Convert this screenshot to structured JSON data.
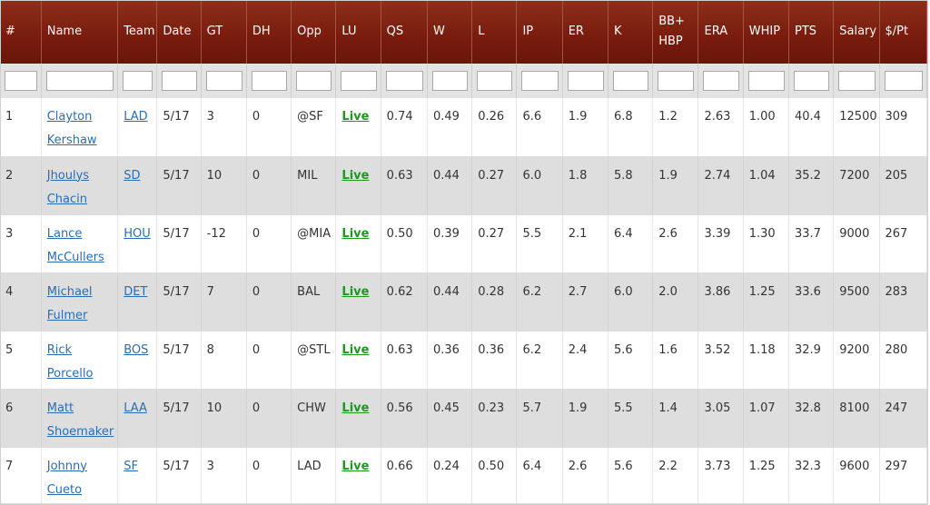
{
  "columns": [
    "#",
    "Name",
    "Team",
    "Date",
    "GT",
    "DH",
    "Opp",
    "LU",
    "QS",
    "W",
    "L",
    "IP",
    "ER",
    "K",
    "BB+\nHBP",
    "ERA",
    "WHIP",
    "PTS",
    "Salary",
    "$/Pt"
  ],
  "rows": [
    {
      "rank": "1",
      "first": "Clayton",
      "last": "Kershaw",
      "team": "LAD",
      "date": "5/17",
      "gt": "3",
      "dh": "0",
      "opp": "@SF",
      "lu": "Live",
      "qs": "0.74",
      "w": "0.49",
      "l": "0.26",
      "ip": "6.6",
      "er": "1.9",
      "k": "6.8",
      "bb": "1.2",
      "era": "2.63",
      "whip": "1.00",
      "pts": "40.4",
      "salary": "12500",
      "ppt": "309"
    },
    {
      "rank": "2",
      "first": "Jhoulys",
      "last": "Chacin",
      "team": "SD",
      "date": "5/17",
      "gt": "10",
      "dh": "0",
      "opp": "MIL",
      "lu": "Live",
      "qs": "0.63",
      "w": "0.44",
      "l": "0.27",
      "ip": "6.0",
      "er": "1.8",
      "k": "5.8",
      "bb": "1.9",
      "era": "2.74",
      "whip": "1.04",
      "pts": "35.2",
      "salary": "7200",
      "ppt": "205"
    },
    {
      "rank": "3",
      "first": "Lance",
      "last": "McCullers",
      "team": "HOU",
      "date": "5/17",
      "gt": "-12",
      "dh": "0",
      "opp": "@MIA",
      "lu": "Live",
      "qs": "0.50",
      "w": "0.39",
      "l": "0.27",
      "ip": "5.5",
      "er": "2.1",
      "k": "6.4",
      "bb": "2.6",
      "era": "3.39",
      "whip": "1.30",
      "pts": "33.7",
      "salary": "9000",
      "ppt": "267"
    },
    {
      "rank": "4",
      "first": "Michael",
      "last": "Fulmer",
      "team": "DET",
      "date": "5/17",
      "gt": "7",
      "dh": "0",
      "opp": "BAL",
      "lu": "Live",
      "qs": "0.62",
      "w": "0.44",
      "l": "0.28",
      "ip": "6.2",
      "er": "2.7",
      "k": "6.0",
      "bb": "2.0",
      "era": "3.86",
      "whip": "1.25",
      "pts": "33.6",
      "salary": "9500",
      "ppt": "283"
    },
    {
      "rank": "5",
      "first": "Rick",
      "last": "Porcello",
      "team": "BOS",
      "date": "5/17",
      "gt": "8",
      "dh": "0",
      "opp": "@STL",
      "lu": "Live",
      "qs": "0.63",
      "w": "0.36",
      "l": "0.36",
      "ip": "6.2",
      "er": "2.4",
      "k": "5.6",
      "bb": "1.6",
      "era": "3.52",
      "whip": "1.18",
      "pts": "32.9",
      "salary": "9200",
      "ppt": "280"
    },
    {
      "rank": "6",
      "first": "Matt",
      "last": "Shoemaker",
      "team": "LAA",
      "date": "5/17",
      "gt": "10",
      "dh": "0",
      "opp": "CHW",
      "lu": "Live",
      "qs": "0.56",
      "w": "0.45",
      "l": "0.23",
      "ip": "5.7",
      "er": "1.9",
      "k": "5.5",
      "bb": "1.4",
      "era": "3.05",
      "whip": "1.07",
      "pts": "32.8",
      "salary": "8100",
      "ppt": "247"
    },
    {
      "rank": "7",
      "first": "Johnny",
      "last": "Cueto",
      "team": "SF",
      "date": "5/17",
      "gt": "3",
      "dh": "0",
      "opp": "LAD",
      "lu": "Live",
      "qs": "0.66",
      "w": "0.24",
      "l": "0.50",
      "ip": "6.4",
      "er": "2.6",
      "k": "5.6",
      "bb": "2.2",
      "era": "3.73",
      "whip": "1.25",
      "pts": "32.3",
      "salary": "9600",
      "ppt": "297"
    }
  ]
}
